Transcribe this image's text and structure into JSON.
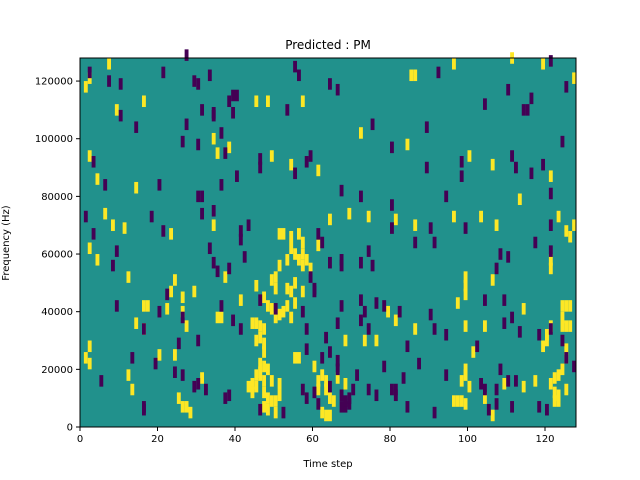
{
  "chart_data": {
    "type": "heatmap",
    "title": "Predicted : PM",
    "xlabel": "Time step",
    "ylabel": "Frequency (Hz)",
    "xlim": [
      0,
      128
    ],
    "ylim": [
      0,
      128000
    ],
    "x_ticks": [
      0,
      20,
      40,
      60,
      80,
      100,
      120
    ],
    "x_tick_labels": [
      "0",
      "20",
      "40",
      "60",
      "80",
      "100",
      "120"
    ],
    "y_ticks": [
      0,
      20000,
      40000,
      60000,
      80000,
      100000,
      120000
    ],
    "y_tick_labels": [
      "0",
      "20000",
      "40000",
      "60000",
      "80000",
      "100000",
      "120000"
    ],
    "grid": false,
    "legend": "none",
    "colors": {
      "background": "#21918c",
      "high": "#fde725",
      "low": "#440154"
    },
    "cells_high": [
      [
        7,
        124000
      ],
      [
        2,
        119000
      ],
      [
        1,
        116000
      ],
      [
        16,
        111000
      ],
      [
        9,
        108000
      ],
      [
        45,
        111000
      ],
      [
        48,
        111000
      ],
      [
        57,
        111000
      ],
      [
        85,
        120000
      ],
      [
        86,
        120000
      ],
      [
        96,
        124000
      ],
      [
        111,
        126000
      ],
      [
        119,
        124000
      ],
      [
        127,
        119000
      ],
      [
        2,
        92000
      ],
      [
        4,
        84000
      ],
      [
        14,
        81000
      ],
      [
        35,
        93000
      ],
      [
        34,
        98000
      ],
      [
        38,
        95000
      ],
      [
        49,
        92000
      ],
      [
        54,
        89000
      ],
      [
        61,
        87000
      ],
      [
        72,
        100000
      ],
      [
        84,
        96000
      ],
      [
        100,
        92000
      ],
      [
        106,
        89000
      ],
      [
        121,
        85000
      ],
      [
        6,
        72000
      ],
      [
        8,
        68000
      ],
      [
        11,
        67000
      ],
      [
        23,
        65000
      ],
      [
        34,
        68000
      ],
      [
        51,
        65000
      ],
      [
        52,
        65000
      ],
      [
        54,
        64000
      ],
      [
        56,
        65000
      ],
      [
        57,
        62000
      ],
      [
        61,
        61000
      ],
      [
        64,
        70000
      ],
      [
        69,
        72000
      ],
      [
        74,
        71000
      ],
      [
        81,
        70000
      ],
      [
        86,
        68000
      ],
      [
        96,
        71000
      ],
      [
        103,
        71000
      ],
      [
        107,
        68000
      ],
      [
        113,
        77000
      ],
      [
        123,
        71000
      ],
      [
        125,
        66000
      ],
      [
        127,
        68000
      ],
      [
        2,
        60000
      ],
      [
        4,
        56000
      ],
      [
        12,
        50000
      ],
      [
        16,
        40000
      ],
      [
        17,
        40000
      ],
      [
        23,
        45000
      ],
      [
        24,
        49000
      ],
      [
        26,
        43000
      ],
      [
        26,
        38000
      ],
      [
        29,
        45000
      ],
      [
        37,
        50000
      ],
      [
        41,
        42000
      ],
      [
        45,
        47000
      ],
      [
        47,
        43000
      ],
      [
        48,
        40000
      ],
      [
        49,
        39000
      ],
      [
        50,
        36000
      ],
      [
        51,
        37000
      ],
      [
        52,
        38000
      ],
      [
        53,
        40000
      ],
      [
        54,
        36000
      ],
      [
        55,
        41000
      ],
      [
        53,
        46000
      ],
      [
        54,
        45000
      ],
      [
        55,
        48000
      ],
      [
        57,
        45000
      ],
      [
        57,
        54000
      ],
      [
        56,
        56000
      ],
      [
        57,
        58000
      ],
      [
        58,
        56000
      ],
      [
        59,
        53000
      ],
      [
        53,
        56000
      ],
      [
        54,
        60000
      ],
      [
        55,
        58000
      ],
      [
        50,
        46000
      ],
      [
        50,
        50000
      ],
      [
        51,
        54000
      ],
      [
        49,
        49000
      ],
      [
        99,
        50000
      ],
      [
        99,
        47000
      ],
      [
        99,
        44000
      ],
      [
        97,
        41000
      ],
      [
        104,
        33000
      ],
      [
        106,
        49000
      ],
      [
        114,
        39000
      ],
      [
        124,
        40000
      ],
      [
        125,
        40000
      ],
      [
        126,
        40000
      ],
      [
        124,
        36000
      ],
      [
        121,
        33000
      ],
      [
        125,
        33000
      ],
      [
        121,
        56000
      ],
      [
        121,
        53000
      ],
      [
        126,
        64000
      ],
      [
        2,
        26000
      ],
      [
        14,
        34000
      ],
      [
        16,
        32000
      ],
      [
        22,
        39000
      ],
      [
        24,
        23000
      ],
      [
        27,
        33000
      ],
      [
        35,
        36000
      ],
      [
        36,
        36000
      ],
      [
        44,
        34000
      ],
      [
        45,
        34000
      ],
      [
        46,
        33000
      ],
      [
        47,
        32000
      ],
      [
        45,
        28000
      ],
      [
        46,
        29000
      ],
      [
        47,
        27000
      ],
      [
        47,
        24000
      ],
      [
        46,
        20000
      ],
      [
        47,
        19000
      ],
      [
        48,
        18000
      ],
      [
        46,
        17000
      ],
      [
        45,
        16000
      ],
      [
        46,
        16000
      ],
      [
        47,
        14000
      ],
      [
        49,
        14000
      ],
      [
        45,
        12000
      ],
      [
        47,
        10000
      ],
      [
        48,
        8000
      ],
      [
        49,
        7000
      ],
      [
        47,
        5000
      ],
      [
        48,
        4000
      ],
      [
        50,
        7000
      ],
      [
        50,
        3000
      ],
      [
        51,
        9000
      ],
      [
        51,
        13000
      ],
      [
        56,
        22000
      ],
      [
        60,
        19000
      ],
      [
        61,
        14000
      ],
      [
        62,
        16000
      ],
      [
        63,
        14000
      ],
      [
        61,
        11000
      ],
      [
        63,
        11000
      ],
      [
        64,
        8000
      ],
      [
        65,
        7000
      ],
      [
        62,
        3000
      ],
      [
        63,
        2000
      ],
      [
        64,
        2000
      ],
      [
        66,
        15000
      ],
      [
        68,
        13000
      ],
      [
        68,
        28000
      ],
      [
        73,
        28000
      ],
      [
        76,
        28000
      ],
      [
        79,
        38000
      ],
      [
        81,
        35000
      ],
      [
        86,
        32000
      ],
      [
        99,
        33000
      ],
      [
        101,
        24000
      ],
      [
        99,
        18000
      ],
      [
        99,
        16000
      ],
      [
        98,
        14000
      ],
      [
        100,
        12000
      ],
      [
        96,
        7000
      ],
      [
        97,
        7000
      ],
      [
        98,
        7000
      ],
      [
        99,
        6000
      ],
      [
        104,
        8000
      ],
      [
        106,
        2000
      ],
      [
        109,
        13000
      ],
      [
        114,
        12000
      ],
      [
        117,
        14000
      ],
      [
        123,
        16000
      ],
      [
        122,
        15000
      ],
      [
        121,
        13000
      ],
      [
        122,
        10000
      ],
      [
        122,
        7000
      ],
      [
        123,
        7000
      ],
      [
        123,
        9000
      ],
      [
        125,
        11000
      ],
      [
        124,
        18000
      ],
      [
        125,
        22000
      ],
      [
        119,
        26000
      ],
      [
        120,
        28000
      ],
      [
        120,
        30000
      ],
      [
        125,
        25000
      ],
      [
        124,
        33000
      ],
      [
        126,
        33000
      ],
      [
        12,
        16000
      ],
      [
        20,
        23000
      ],
      [
        25,
        8000
      ],
      [
        26,
        5000
      ],
      [
        27,
        5000
      ],
      [
        28,
        3000
      ],
      [
        31,
        15000
      ],
      [
        13,
        11000
      ],
      [
        1,
        22000
      ],
      [
        2,
        20000
      ],
      [
        43,
        12000
      ],
      [
        44,
        13000
      ],
      [
        44,
        10000
      ],
      [
        55,
        22000
      ]
    ],
    "cells_low": [
      [
        2,
        121000
      ],
      [
        27,
        127000
      ],
      [
        39,
        113000
      ],
      [
        40,
        113000
      ],
      [
        38,
        111000
      ],
      [
        31,
        108000
      ],
      [
        34,
        106000
      ],
      [
        55,
        123000
      ],
      [
        56,
        120000
      ],
      [
        64,
        117000
      ],
      [
        66,
        115000
      ],
      [
        75,
        103000
      ],
      [
        89,
        102000
      ],
      [
        92,
        121000
      ],
      [
        104,
        110000
      ],
      [
        110,
        115000
      ],
      [
        114,
        108000
      ],
      [
        115,
        108000
      ],
      [
        116,
        112000
      ],
      [
        121,
        125000
      ],
      [
        125,
        116000
      ],
      [
        21,
        121000
      ],
      [
        10,
        117000
      ],
      [
        14,
        102000
      ],
      [
        27,
        103000
      ],
      [
        29,
        118000
      ],
      [
        30,
        117000
      ],
      [
        33,
        120000
      ],
      [
        34,
        107000
      ],
      [
        36,
        100000
      ],
      [
        39,
        107000
      ],
      [
        53,
        108000
      ],
      [
        7,
        118000
      ],
      [
        3,
        90000
      ],
      [
        6,
        82000
      ],
      [
        20,
        82000
      ],
      [
        30,
        78000
      ],
      [
        31,
        78000
      ],
      [
        34,
        73000
      ],
      [
        36,
        82000
      ],
      [
        40,
        85000
      ],
      [
        46,
        91000
      ],
      [
        58,
        90000
      ],
      [
        59,
        92000
      ],
      [
        67,
        80000
      ],
      [
        72,
        78000
      ],
      [
        80,
        95000
      ],
      [
        89,
        88000
      ],
      [
        98,
        90000
      ],
      [
        98,
        85000
      ],
      [
        111,
        92000
      ],
      [
        112,
        88000
      ],
      [
        116,
        86000
      ],
      [
        121,
        79000
      ],
      [
        124,
        97000
      ],
      [
        119,
        89000
      ],
      [
        10,
        106000
      ],
      [
        26,
        97000
      ],
      [
        30,
        96000
      ],
      [
        37,
        93000
      ],
      [
        46,
        88000
      ],
      [
        55,
        86000
      ],
      [
        1,
        71000
      ],
      [
        3,
        65000
      ],
      [
        9,
        59000
      ],
      [
        8,
        54000
      ],
      [
        18,
        71000
      ],
      [
        21,
        66000
      ],
      [
        31,
        72000
      ],
      [
        33,
        60000
      ],
      [
        34,
        55000
      ],
      [
        35,
        52000
      ],
      [
        38,
        53000
      ],
      [
        42,
        57000
      ],
      [
        41,
        66000
      ],
      [
        41,
        63000
      ],
      [
        43,
        68000
      ],
      [
        61,
        65000
      ],
      [
        62,
        62000
      ],
      [
        59,
        50000
      ],
      [
        60,
        46000
      ],
      [
        60,
        45000
      ],
      [
        64,
        55000
      ],
      [
        67,
        56000
      ],
      [
        67,
        54000
      ],
      [
        72,
        55000
      ],
      [
        74,
        59000
      ],
      [
        75,
        54000
      ],
      [
        80,
        67000
      ],
      [
        80,
        75000
      ],
      [
        86,
        62000
      ],
      [
        90,
        67000
      ],
      [
        91,
        62000
      ],
      [
        94,
        78000
      ],
      [
        99,
        67000
      ],
      [
        108,
        58000
      ],
      [
        110,
        57000
      ],
      [
        107,
        53000
      ],
      [
        109,
        42000
      ],
      [
        117,
        62000
      ],
      [
        121,
        68000
      ],
      [
        121,
        59000
      ],
      [
        9,
        40000
      ],
      [
        16,
        32000
      ],
      [
        20,
        38000
      ],
      [
        26,
        36000
      ],
      [
        22,
        44000
      ],
      [
        25,
        27000
      ],
      [
        30,
        28000
      ],
      [
        36,
        40000
      ],
      [
        39,
        35000
      ],
      [
        41,
        32000
      ],
      [
        46,
        42000
      ],
      [
        50,
        39000
      ],
      [
        58,
        32000
      ],
      [
        57,
        38000
      ],
      [
        58,
        25000
      ],
      [
        62,
        22000
      ],
      [
        63,
        29000
      ],
      [
        64,
        24000
      ],
      [
        66,
        34000
      ],
      [
        67,
        40000
      ],
      [
        72,
        35000
      ],
      [
        72,
        42000
      ],
      [
        73,
        38000
      ],
      [
        74,
        32000
      ],
      [
        76,
        41000
      ],
      [
        78,
        40000
      ],
      [
        82,
        38000
      ],
      [
        84,
        26000
      ],
      [
        87,
        20000
      ],
      [
        90,
        37000
      ],
      [
        91,
        32000
      ],
      [
        94,
        30000
      ],
      [
        104,
        42000
      ],
      [
        109,
        34000
      ],
      [
        111,
        36000
      ],
      [
        113,
        31000
      ],
      [
        118,
        30000
      ],
      [
        121,
        32000
      ],
      [
        124,
        28000
      ],
      [
        125,
        22000
      ],
      [
        127,
        19000
      ],
      [
        5,
        14000
      ],
      [
        13,
        22000
      ],
      [
        16,
        4000
      ],
      [
        16,
        5000
      ],
      [
        19,
        20000
      ],
      [
        24,
        17000
      ],
      [
        26,
        16000
      ],
      [
        29,
        12000
      ],
      [
        30,
        13000
      ],
      [
        32,
        11000
      ],
      [
        37,
        8000
      ],
      [
        38,
        9000
      ],
      [
        46,
        4000
      ],
      [
        52,
        3000
      ],
      [
        57,
        11000
      ],
      [
        58,
        8000
      ],
      [
        60,
        10000
      ],
      [
        61,
        6000
      ],
      [
        64,
        12000
      ],
      [
        66,
        21000
      ],
      [
        66,
        18000
      ],
      [
        67,
        9000
      ],
      [
        67,
        5000
      ],
      [
        68,
        5000
      ],
      [
        68,
        7000
      ],
      [
        69,
        6000
      ],
      [
        69,
        8000
      ],
      [
        70,
        11000
      ],
      [
        71,
        16000
      ],
      [
        74,
        11000
      ],
      [
        76,
        9000
      ],
      [
        80,
        11000
      ],
      [
        81,
        11000
      ],
      [
        81,
        9000
      ],
      [
        78,
        19000
      ],
      [
        83,
        15000
      ],
      [
        84,
        5000
      ],
      [
        91,
        3000
      ],
      [
        94,
        16000
      ],
      [
        102,
        26000
      ],
      [
        103,
        13000
      ],
      [
        104,
        11000
      ],
      [
        105,
        4000
      ],
      [
        107,
        11000
      ],
      [
        107,
        6000
      ],
      [
        108,
        18000
      ],
      [
        110,
        14000
      ],
      [
        111,
        5000
      ],
      [
        112,
        14000
      ],
      [
        118,
        5000
      ],
      [
        120,
        4000
      ]
    ]
  }
}
